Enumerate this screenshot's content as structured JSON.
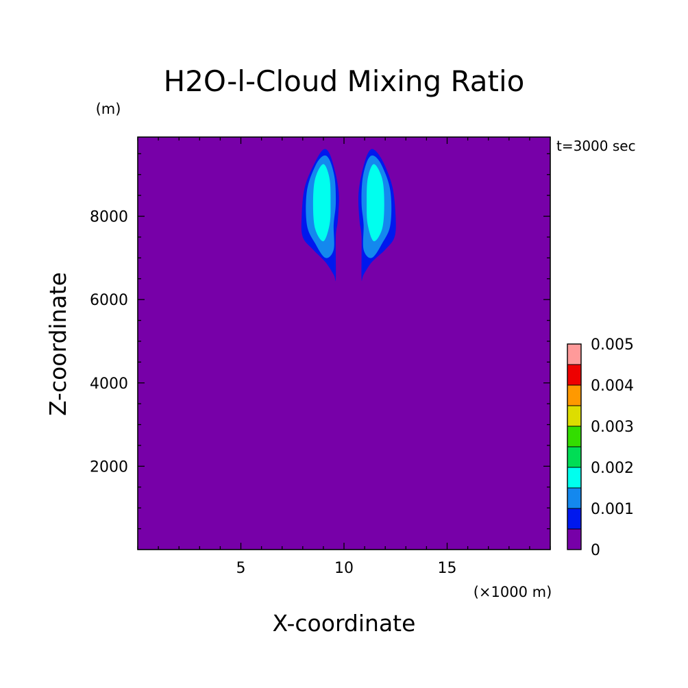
{
  "colors": {
    "background": "#ffffff",
    "frame": "#000000",
    "levels": [
      "#7700a8",
      "#0018ee",
      "#1488ee",
      "#00ffee",
      "#00dd55",
      "#33dd00",
      "#dddd00",
      "#ff9900",
      "#ee0000",
      "#ff9a9a"
    ]
  },
  "chart_data": {
    "type": "contour",
    "title": "H2O-l-Cloud Mixing Ratio",
    "xlabel": "X-coordinate",
    "ylabel": "Z-coordinate",
    "x_unit": "(×1000 m)",
    "y_unit": "(m)",
    "time_label": "t=3000 sec",
    "xlim": [
      0,
      20
    ],
    "ylim": [
      0,
      9900
    ],
    "x_ticks": [
      5,
      10,
      15
    ],
    "y_ticks": [
      2000,
      4000,
      6000,
      8000
    ],
    "colorbar": {
      "levels": [
        0,
        0.0005,
        0.001,
        0.0015,
        0.002,
        0.0025,
        0.003,
        0.0035,
        0.004,
        0.0045,
        0.005
      ],
      "tick_values": [
        0,
        0.001,
        0.002,
        0.003,
        0.004,
        0.005
      ],
      "tick_labels": [
        "0",
        "0.001",
        "0.002",
        "0.003",
        "0.004",
        "0.005"
      ]
    },
    "field_value_outside_clouds": 0,
    "cloud_regions": [
      {
        "name": "left",
        "contours": [
          {
            "level": 0.0005,
            "points": [
              [
                9.6,
                6500
              ],
              [
                9.5,
                6600
              ],
              [
                9.1,
                6900
              ],
              [
                8.5,
                7200
              ],
              [
                8.0,
                7500
              ],
              [
                7.95,
                8000
              ],
              [
                8.1,
                8700
              ],
              [
                8.6,
                9300
              ],
              [
                9.0,
                9600
              ],
              [
                9.3,
                9500
              ],
              [
                9.6,
                9000
              ],
              [
                9.75,
                8500
              ],
              [
                9.7,
                7900
              ],
              [
                9.6,
                7500
              ]
            ]
          },
          {
            "level": 0.001,
            "points": [
              [
                9.5,
                7200
              ],
              [
                9.1,
                7000
              ],
              [
                8.6,
                7350
              ],
              [
                8.2,
                7800
              ],
              [
                8.2,
                8600
              ],
              [
                8.6,
                9200
              ],
              [
                9.0,
                9450
              ],
              [
                9.3,
                9350
              ],
              [
                9.55,
                8900
              ],
              [
                9.6,
                8300
              ],
              [
                9.5,
                7800
              ]
            ]
          },
          {
            "level": 0.0015,
            "points": [
              [
                9.0,
                7400
              ],
              [
                8.6,
                7700
              ],
              [
                8.5,
                8300
              ],
              [
                8.6,
                8900
              ],
              [
                9.0,
                9250
              ],
              [
                9.3,
                8900
              ],
              [
                9.35,
                8300
              ],
              [
                9.3,
                7800
              ]
            ]
          }
        ]
      },
      {
        "name": "right",
        "contours": [
          {
            "level": 0.0005,
            "points": [
              [
                10.85,
                6500
              ],
              [
                10.95,
                6600
              ],
              [
                11.35,
                6900
              ],
              [
                12.0,
                7200
              ],
              [
                12.45,
                7500
              ],
              [
                12.5,
                8000
              ],
              [
                12.35,
                8700
              ],
              [
                11.9,
                9300
              ],
              [
                11.45,
                9600
              ],
              [
                11.15,
                9500
              ],
              [
                10.85,
                9000
              ],
              [
                10.7,
                8500
              ],
              [
                10.75,
                7900
              ],
              [
                10.85,
                7500
              ]
            ]
          },
          {
            "level": 0.001,
            "points": [
              [
                10.95,
                7200
              ],
              [
                11.35,
                7000
              ],
              [
                11.85,
                7350
              ],
              [
                12.25,
                7800
              ],
              [
                12.25,
                8600
              ],
              [
                11.85,
                9200
              ],
              [
                11.45,
                9450
              ],
              [
                11.15,
                9350
              ],
              [
                10.9,
                8900
              ],
              [
                10.85,
                8300
              ],
              [
                10.95,
                7800
              ]
            ]
          },
          {
            "level": 0.0015,
            "points": [
              [
                11.45,
                7400
              ],
              [
                11.85,
                7700
              ],
              [
                11.95,
                8300
              ],
              [
                11.85,
                8900
              ],
              [
                11.45,
                9250
              ],
              [
                11.15,
                8900
              ],
              [
                11.1,
                8300
              ],
              [
                11.15,
                7800
              ]
            ]
          }
        ]
      }
    ]
  }
}
